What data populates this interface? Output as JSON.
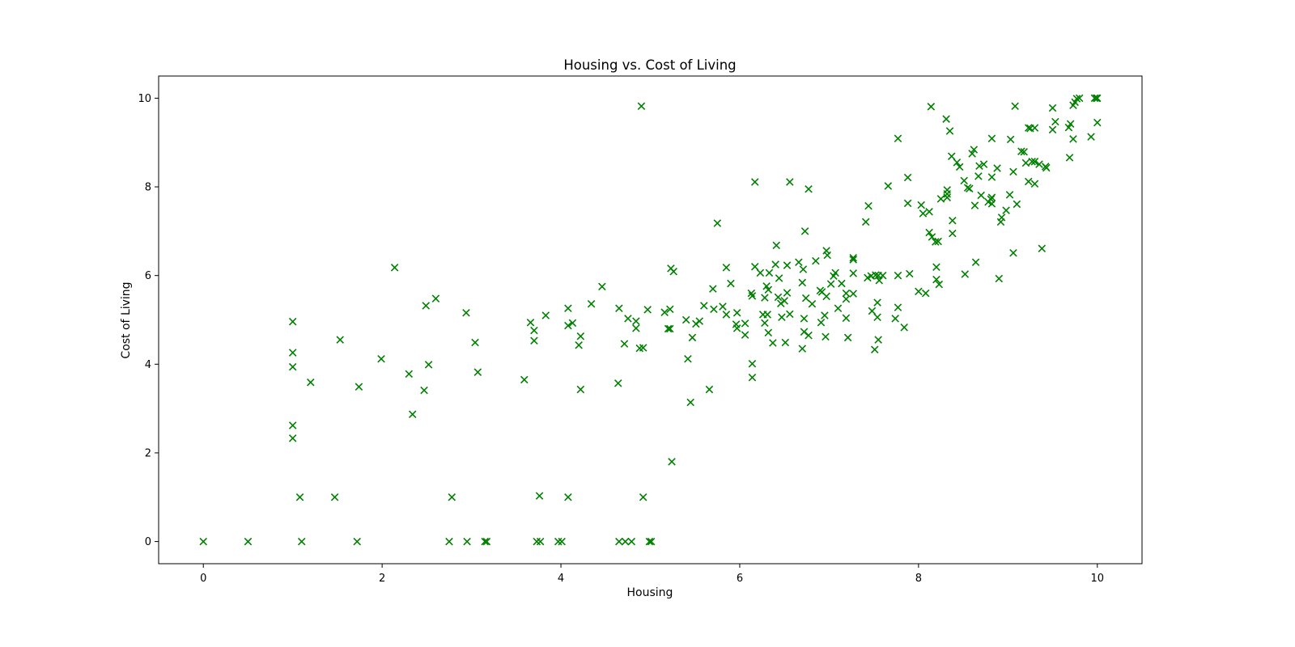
{
  "chart_data": {
    "type": "scatter",
    "title": "Housing vs. Cost of Living",
    "xlabel": "Housing",
    "ylabel": "Cost of Living",
    "xlim": [
      -0.5,
      10.5
    ],
    "ylim": [
      -0.5,
      10.5
    ],
    "xticks": [
      0,
      2,
      4,
      6,
      8,
      10
    ],
    "yticks": [
      0,
      2,
      4,
      6,
      8,
      10
    ],
    "marker": "x",
    "color": "#008000",
    "grid": false,
    "series": [
      {
        "points": [
          [
            0,
            0
          ],
          [
            0.5,
            0
          ],
          [
            1.1,
            0
          ],
          [
            1.72,
            0
          ],
          [
            2.75,
            0
          ],
          [
            2.95,
            0
          ],
          [
            3.15,
            0
          ],
          [
            3.17,
            0
          ],
          [
            3.73,
            0
          ],
          [
            3.77,
            0
          ],
          [
            3.97,
            0
          ],
          [
            4.01,
            0
          ],
          [
            4.65,
            0
          ],
          [
            4.72,
            0
          ],
          [
            4.79,
            0
          ],
          [
            4.99,
            0
          ],
          [
            5.01,
            0
          ],
          [
            1.08,
            1.0
          ],
          [
            1.47,
            1.0
          ],
          [
            2.78,
            1.0
          ],
          [
            3.76,
            1.03
          ],
          [
            4.08,
            1.0
          ],
          [
            4.92,
            1.0
          ],
          [
            5.24,
            1.8
          ],
          [
            1.0,
            2.33
          ],
          [
            1.0,
            2.62
          ],
          [
            1.0,
            3.94
          ],
          [
            1.0,
            4.26
          ],
          [
            1.0,
            4.96
          ],
          [
            1.2,
            3.59
          ],
          [
            1.53,
            4.55
          ],
          [
            1.74,
            3.49
          ],
          [
            1.99,
            4.12
          ],
          [
            2.14,
            6.18
          ],
          [
            2.3,
            3.78
          ],
          [
            2.34,
            2.87
          ],
          [
            2.47,
            3.41
          ],
          [
            2.49,
            5.32
          ],
          [
            2.52,
            3.99
          ],
          [
            2.6,
            5.48
          ],
          [
            2.94,
            5.16
          ],
          [
            3.04,
            4.49
          ],
          [
            3.07,
            3.82
          ],
          [
            3.59,
            3.65
          ],
          [
            3.66,
            4.94
          ],
          [
            3.7,
            4.76
          ],
          [
            3.7,
            4.53
          ],
          [
            3.83,
            5.1
          ],
          [
            4.08,
            5.26
          ],
          [
            4.08,
            4.87
          ],
          [
            4.13,
            4.93
          ],
          [
            4.2,
            4.43
          ],
          [
            4.22,
            4.63
          ],
          [
            4.22,
            3.43
          ],
          [
            4.34,
            5.36
          ],
          [
            4.46,
            5.75
          ],
          [
            4.64,
            3.57
          ],
          [
            4.65,
            5.26
          ],
          [
            4.71,
            4.46
          ],
          [
            4.75,
            5.03
          ],
          [
            4.84,
            4.97
          ],
          [
            4.84,
            4.81
          ],
          [
            4.88,
            4.36
          ],
          [
            4.92,
            4.37
          ],
          [
            4.9,
            9.82
          ],
          [
            4.97,
            5.23
          ],
          [
            5.16,
            5.17
          ],
          [
            5.2,
            4.8
          ],
          [
            5.22,
            5.24
          ],
          [
            5.22,
            4.8
          ],
          [
            5.23,
            6.16
          ],
          [
            5.26,
            6.09
          ],
          [
            5.4,
            5.0
          ],
          [
            5.42,
            4.12
          ],
          [
            5.45,
            3.14
          ],
          [
            5.47,
            4.6
          ],
          [
            5.51,
            4.91
          ],
          [
            5.55,
            4.97
          ],
          [
            5.6,
            5.32
          ],
          [
            5.66,
            3.43
          ],
          [
            5.7,
            5.7
          ],
          [
            5.71,
            5.24
          ],
          [
            5.75,
            7.18
          ],
          [
            5.81,
            5.3
          ],
          [
            5.85,
            6.18
          ],
          [
            5.85,
            5.12
          ],
          [
            5.9,
            5.82
          ],
          [
            5.96,
            4.9
          ],
          [
            5.97,
            4.81
          ],
          [
            5.97,
            5.16
          ],
          [
            6.06,
            4.92
          ],
          [
            6.06,
            4.66
          ],
          [
            6.13,
            5.6
          ],
          [
            6.14,
            4.01
          ],
          [
            6.14,
            3.7
          ],
          [
            6.14,
            5.54
          ],
          [
            6.17,
            8.11
          ],
          [
            6.17,
            6.2
          ],
          [
            6.23,
            6.06
          ],
          [
            6.26,
            5.12
          ],
          [
            6.28,
            4.93
          ],
          [
            6.28,
            5.5
          ],
          [
            6.3,
            5.76
          ],
          [
            6.31,
            5.12
          ],
          [
            6.32,
            5.68
          ],
          [
            6.32,
            4.71
          ],
          [
            6.33,
            6.06
          ],
          [
            6.37,
            4.48
          ],
          [
            6.4,
            6.25
          ],
          [
            6.41,
            6.68
          ],
          [
            6.43,
            5.51
          ],
          [
            6.44,
            5.94
          ],
          [
            6.46,
            5.37
          ],
          [
            6.47,
            5.06
          ],
          [
            6.5,
            5.43
          ],
          [
            6.51,
            4.49
          ],
          [
            6.53,
            5.61
          ],
          [
            6.53,
            6.23
          ],
          [
            6.56,
            8.11
          ],
          [
            6.56,
            5.13
          ],
          [
            6.66,
            6.3
          ],
          [
            6.7,
            5.84
          ],
          [
            6.7,
            4.35
          ],
          [
            6.71,
            6.14
          ],
          [
            6.72,
            4.73
          ],
          [
            6.72,
            5.03
          ],
          [
            6.73,
            7.0
          ],
          [
            6.74,
            5.49
          ],
          [
            6.77,
            4.65
          ],
          [
            6.77,
            7.95
          ],
          [
            6.81,
            5.36
          ],
          [
            6.85,
            6.33
          ],
          [
            6.9,
            5.66
          ],
          [
            6.91,
            4.94
          ],
          [
            6.92,
            5.63
          ],
          [
            6.95,
            5.1
          ],
          [
            6.96,
            4.62
          ],
          [
            6.97,
            6.56
          ],
          [
            6.97,
            5.53
          ],
          [
            6.98,
            6.46
          ],
          [
            7.02,
            5.81
          ],
          [
            7.05,
            5.99
          ],
          [
            7.07,
            6.06
          ],
          [
            7.1,
            5.26
          ],
          [
            7.14,
            5.82
          ],
          [
            7.19,
            5.6
          ],
          [
            7.19,
            5.47
          ],
          [
            7.19,
            5.04
          ],
          [
            7.21,
            4.6
          ],
          [
            7.27,
            5.59
          ],
          [
            7.27,
            6.4
          ],
          [
            7.27,
            6.36
          ],
          [
            7.27,
            6.05
          ],
          [
            7.41,
            7.21
          ],
          [
            7.43,
            5.95
          ],
          [
            7.44,
            7.57
          ],
          [
            7.47,
            5.99
          ],
          [
            7.48,
            5.2
          ],
          [
            7.51,
            4.33
          ],
          [
            7.52,
            6.01
          ],
          [
            7.54,
            5.06
          ],
          [
            7.54,
            5.39
          ],
          [
            7.55,
            6.0
          ],
          [
            7.55,
            4.55
          ],
          [
            7.56,
            5.89
          ],
          [
            7.6,
            6.0
          ],
          [
            7.66,
            8.02
          ],
          [
            7.74,
            5.03
          ],
          [
            7.77,
            6.0
          ],
          [
            7.77,
            5.28
          ],
          [
            7.77,
            9.09
          ],
          [
            7.84,
            4.83
          ],
          [
            7.88,
            8.21
          ],
          [
            7.88,
            7.63
          ],
          [
            7.9,
            6.04
          ],
          [
            8.0,
            5.64
          ],
          [
            8.03,
            7.59
          ],
          [
            8.05,
            7.4
          ],
          [
            8.08,
            5.6
          ],
          [
            8.12,
            7.44
          ],
          [
            8.12,
            6.97
          ],
          [
            8.14,
            9.81
          ],
          [
            8.15,
            6.87
          ],
          [
            8.19,
            6.76
          ],
          [
            8.2,
            6.19
          ],
          [
            8.2,
            5.91
          ],
          [
            8.22,
            6.77
          ],
          [
            8.23,
            5.8
          ],
          [
            8.25,
            7.73
          ],
          [
            8.31,
            9.53
          ],
          [
            8.32,
            7.76
          ],
          [
            8.32,
            7.84
          ],
          [
            8.32,
            7.93
          ],
          [
            8.35,
            9.26
          ],
          [
            8.37,
            8.69
          ],
          [
            8.38,
            7.24
          ],
          [
            8.38,
            6.95
          ],
          [
            8.43,
            8.55
          ],
          [
            8.46,
            8.45
          ],
          [
            8.51,
            8.14
          ],
          [
            8.52,
            6.03
          ],
          [
            8.55,
            7.98
          ],
          [
            8.57,
            7.96
          ],
          [
            8.6,
            8.75
          ],
          [
            8.62,
            8.84
          ],
          [
            8.63,
            7.58
          ],
          [
            8.64,
            6.3
          ],
          [
            8.67,
            8.24
          ],
          [
            8.68,
            8.47
          ],
          [
            8.7,
            7.81
          ],
          [
            8.73,
            8.51
          ],
          [
            8.78,
            7.66
          ],
          [
            8.81,
            7.72
          ],
          [
            8.82,
            7.76
          ],
          [
            8.82,
            7.62
          ],
          [
            8.82,
            8.22
          ],
          [
            8.82,
            9.09
          ],
          [
            8.88,
            8.42
          ],
          [
            8.9,
            5.93
          ],
          [
            8.92,
            7.21
          ],
          [
            8.93,
            7.31
          ],
          [
            8.98,
            7.47
          ],
          [
            9.02,
            7.82
          ],
          [
            9.03,
            9.07
          ],
          [
            9.06,
            8.34
          ],
          [
            9.06,
            6.51
          ],
          [
            9.08,
            9.82
          ],
          [
            9.1,
            7.61
          ],
          [
            9.15,
            8.8
          ],
          [
            9.18,
            8.79
          ],
          [
            9.2,
            8.54
          ],
          [
            9.23,
            9.33
          ],
          [
            9.23,
            8.12
          ],
          [
            9.25,
            9.32
          ],
          [
            9.27,
            8.57
          ],
          [
            9.3,
            8.57
          ],
          [
            9.3,
            9.33
          ],
          [
            9.3,
            8.07
          ],
          [
            9.35,
            8.51
          ],
          [
            9.38,
            6.61
          ],
          [
            9.42,
            8.46
          ],
          [
            9.43,
            8.43
          ],
          [
            9.5,
            9.78
          ],
          [
            9.5,
            9.29
          ],
          [
            9.53,
            9.47
          ],
          [
            9.68,
            9.34
          ],
          [
            9.69,
            8.66
          ],
          [
            9.7,
            9.42
          ],
          [
            9.73,
            9.84
          ],
          [
            9.73,
            9.08
          ],
          [
            9.75,
            9.91
          ],
          [
            9.77,
            9.99
          ],
          [
            9.8,
            10.0
          ],
          [
            9.93,
            9.13
          ],
          [
            9.97,
            10.0
          ],
          [
            9.99,
            10.0
          ],
          [
            10.0,
            10.0
          ],
          [
            10.0,
            9.45
          ]
        ]
      }
    ]
  }
}
